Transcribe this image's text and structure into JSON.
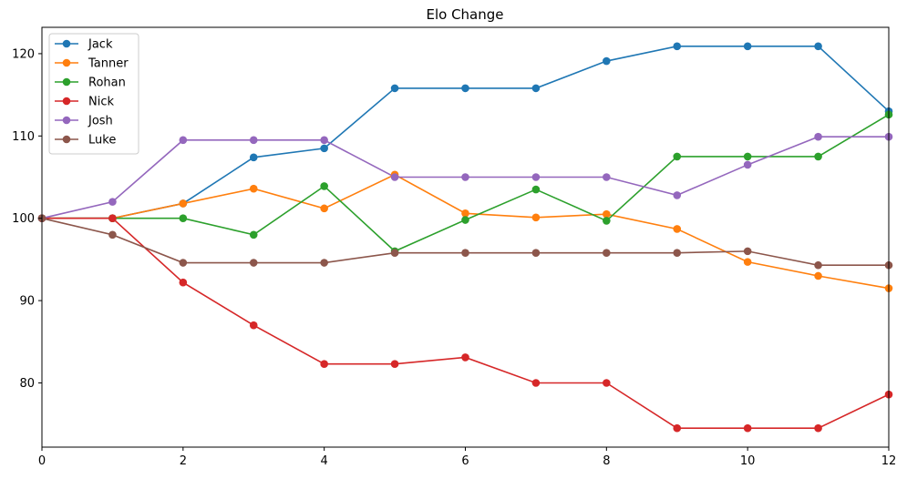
{
  "chart_data": {
    "type": "line",
    "title": "Elo Change",
    "xlabel": "",
    "ylabel": "",
    "xlim": [
      0,
      12
    ],
    "ylim": [
      72.2,
      123.2
    ],
    "x_ticks": [
      0,
      2,
      4,
      6,
      8,
      10,
      12
    ],
    "y_ticks": [
      80,
      90,
      100,
      110,
      120
    ],
    "grid": false,
    "legend_position": "top-left",
    "x": [
      0,
      1,
      2,
      3,
      4,
      5,
      6,
      7,
      8,
      9,
      10,
      11,
      12
    ],
    "series": [
      {
        "name": "Jack",
        "color": "#1f77b4",
        "values": [
          100,
          100,
          101.8,
          107.4,
          108.5,
          115.8,
          115.8,
          115.8,
          119.1,
          120.9,
          120.9,
          120.9,
          113.0
        ]
      },
      {
        "name": "Tanner",
        "color": "#ff7f0e",
        "values": [
          100,
          100,
          101.8,
          103.6,
          101.2,
          105.3,
          100.6,
          100.1,
          100.5,
          98.7,
          94.7,
          93.0,
          91.5
        ]
      },
      {
        "name": "Rohan",
        "color": "#2ca02c",
        "values": [
          100,
          100,
          100,
          98.0,
          103.9,
          96.0,
          99.8,
          103.5,
          99.7,
          107.5,
          107.5,
          107.5,
          112.6
        ]
      },
      {
        "name": "Nick",
        "color": "#d62728",
        "values": [
          100,
          100,
          92.2,
          87.0,
          82.3,
          82.3,
          83.1,
          80.0,
          80.0,
          74.5,
          74.5,
          74.5,
          78.6
        ]
      },
      {
        "name": "Josh",
        "color": "#9467bd",
        "values": [
          100,
          102.0,
          109.5,
          109.5,
          109.5,
          105.0,
          105.0,
          105.0,
          105.0,
          102.8,
          106.5,
          109.9,
          109.9
        ]
      },
      {
        "name": "Luke",
        "color": "#8c564b",
        "values": [
          100,
          98.0,
          94.6,
          94.6,
          94.6,
          95.8,
          95.8,
          95.8,
          95.8,
          95.8,
          96.0,
          94.3,
          94.3
        ]
      }
    ]
  }
}
